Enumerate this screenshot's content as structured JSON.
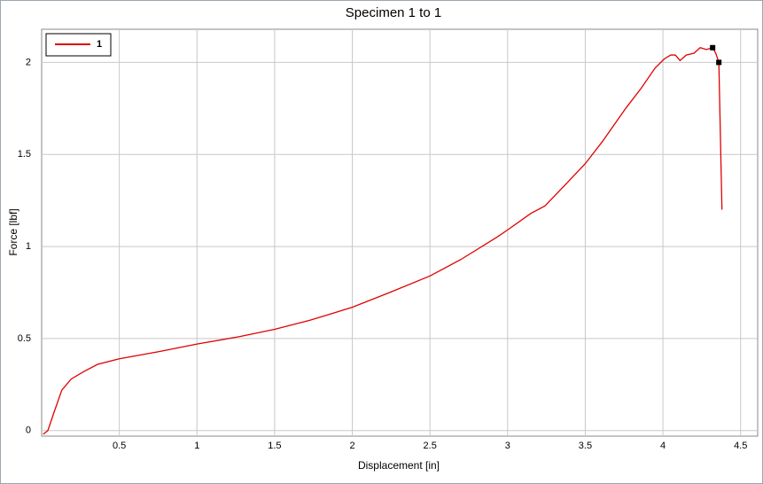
{
  "chart_data": {
    "type": "line",
    "title": "Specimen 1 to 1",
    "xlabel": "Displacement [in]",
    "ylabel": "Force [lbf]",
    "xlim": [
      0,
      4.61
    ],
    "ylim": [
      -0.03,
      2.18
    ],
    "xticks": [
      0.5,
      1,
      1.5,
      2,
      2.5,
      3,
      3.5,
      4,
      4.5
    ],
    "yticks": [
      0,
      0.5,
      1,
      1.5,
      2
    ],
    "grid": true,
    "legend": "upper left",
    "series": [
      {
        "name": "1",
        "color": "#e00000",
        "x": [
          0.01,
          0.04,
          0.08,
          0.13,
          0.19,
          0.27,
          0.36,
          0.5,
          0.76,
          1.0,
          1.27,
          1.5,
          1.73,
          2.0,
          2.24,
          2.5,
          2.7,
          2.93,
          3.0,
          3.15,
          3.24,
          3.32,
          3.5,
          3.61,
          3.76,
          3.86,
          3.95,
          4.01,
          4.05,
          4.08,
          4.11,
          4.15,
          4.2,
          4.24,
          4.28,
          4.32,
          4.34,
          4.36,
          4.38
        ],
        "values": [
          -0.02,
          0.0,
          0.1,
          0.22,
          0.28,
          0.32,
          0.36,
          0.39,
          0.43,
          0.47,
          0.51,
          0.55,
          0.6,
          0.67,
          0.75,
          0.84,
          0.93,
          1.05,
          1.09,
          1.18,
          1.22,
          1.29,
          1.45,
          1.57,
          1.75,
          1.86,
          1.97,
          2.02,
          2.04,
          2.04,
          2.01,
          2.04,
          2.05,
          2.08,
          2.07,
          2.08,
          2.05,
          2.0,
          1.2
        ]
      }
    ],
    "markers": {
      "color": "#000000",
      "x": [
        4.32,
        4.36
      ],
      "values": [
        2.08,
        2.0
      ]
    }
  }
}
